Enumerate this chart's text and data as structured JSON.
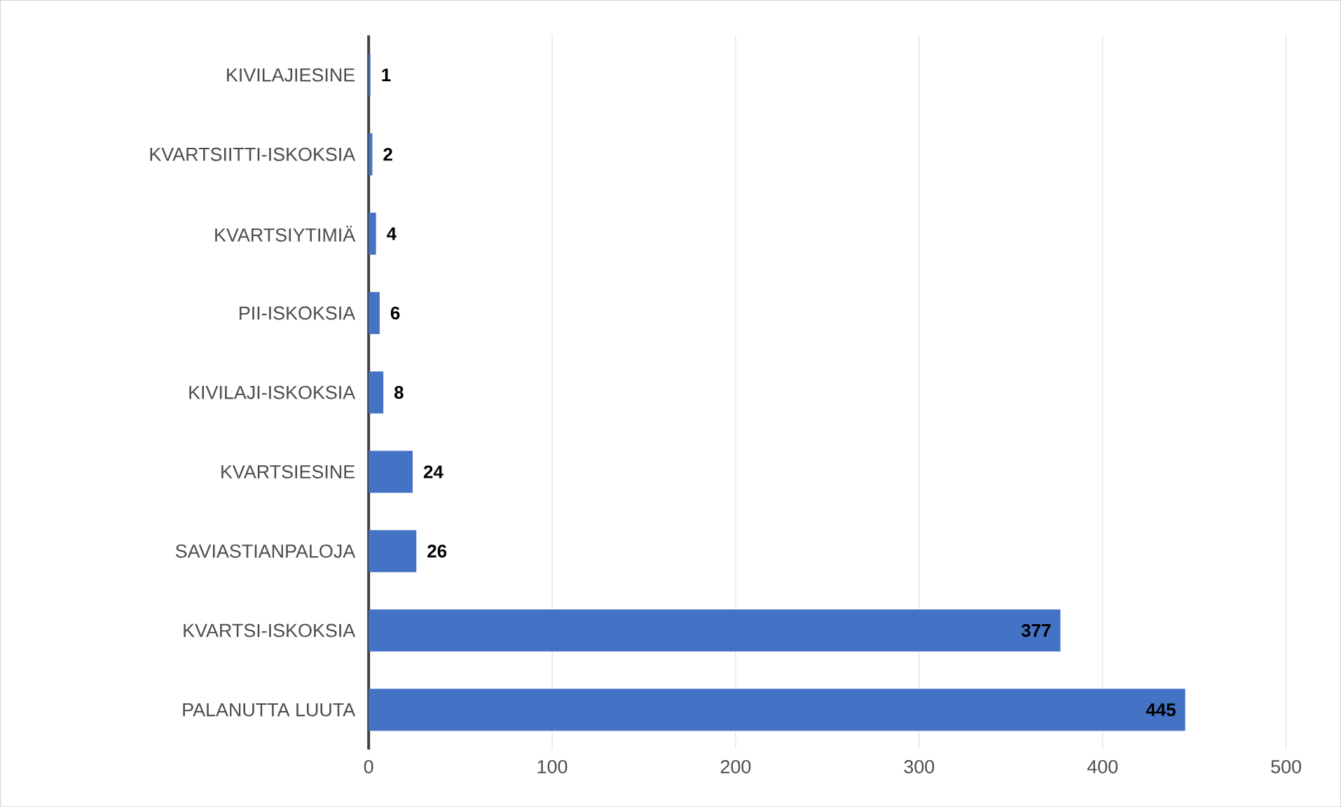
{
  "chart_data": {
    "type": "bar",
    "orientation": "horizontal",
    "categories": [
      "KIVILAJIESINE",
      "KVARTSIITTI-ISKOKSIA",
      "KVARTSIYTIMIÄ",
      "PII-ISKOKSIA",
      "KIVILAJI-ISKOKSIA",
      "KVARTSIESINE",
      "SAVIASTIANPALOJA",
      "KVARTSI-ISKOKSIA",
      "PALANUTTA LUUTA"
    ],
    "values": [
      1,
      2,
      4,
      6,
      8,
      24,
      26,
      377,
      445
    ],
    "value_labels": [
      "1",
      "2",
      "4",
      "6",
      "8",
      "24",
      "26",
      "377",
      "445"
    ],
    "color": "#4472c4",
    "xlim": [
      0,
      500
    ],
    "xticks": [
      0,
      100,
      200,
      300,
      400,
      500
    ],
    "grid": "x"
  }
}
